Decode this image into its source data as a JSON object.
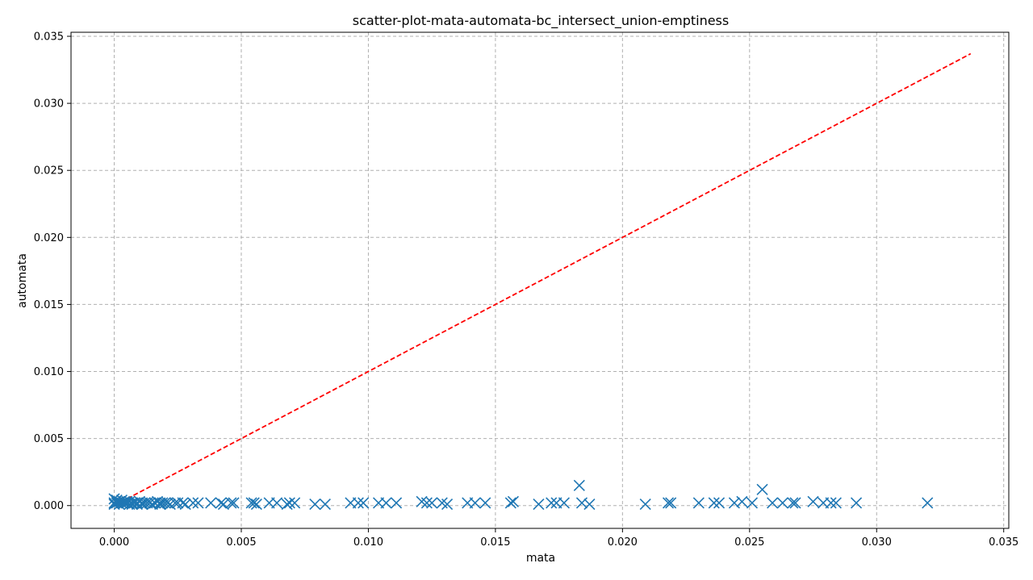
{
  "chart_data": {
    "type": "scatter",
    "title": "scatter-plot-mata-automata-bc_intersect_union-emptiness",
    "xlabel": "mata",
    "ylabel": "automata",
    "xlim": [
      -0.0017,
      0.0352
    ],
    "ylim": [
      -0.0017,
      0.0353
    ],
    "xticks": [
      "0.000",
      "0.005",
      "0.010",
      "0.015",
      "0.020",
      "0.025",
      "0.030",
      "0.035"
    ],
    "yticks": [
      "0.000",
      "0.005",
      "0.010",
      "0.015",
      "0.020",
      "0.025",
      "0.030",
      "0.035"
    ],
    "grid": true,
    "marker": "x",
    "colors": {
      "points": "#1f77b4",
      "reference_line": "#ff0000"
    },
    "reference_line": {
      "style": "dashed",
      "x": [
        0,
        0.0337
      ],
      "y": [
        0,
        0.0337
      ]
    },
    "points": {
      "x": [
        0.0,
        0.0,
        0.0,
        0.0001,
        0.0001,
        0.0002,
        0.0002,
        0.0003,
        0.0003,
        0.0004,
        0.0004,
        0.0005,
        0.0005,
        0.0006,
        0.0006,
        0.0007,
        0.0007,
        0.0008,
        0.0009,
        0.0009,
        0.001,
        0.0011,
        0.0011,
        0.0012,
        0.0013,
        0.0014,
        0.0015,
        0.0016,
        0.0017,
        0.0018,
        0.0018,
        0.0019,
        0.002,
        0.0021,
        0.0022,
        0.0024,
        0.0025,
        0.0027,
        0.0028,
        0.0031,
        0.0033,
        0.0038,
        0.0042,
        0.0043,
        0.0046,
        0.0047,
        0.0054,
        0.0055,
        0.0056,
        0.0061,
        0.0064,
        0.0068,
        0.0069,
        0.0071,
        0.0079,
        0.0083,
        0.0093,
        0.0096,
        0.0098,
        0.0104,
        0.0107,
        0.0111,
        0.0121,
        0.0123,
        0.0125,
        0.0129,
        0.0131,
        0.0139,
        0.0142,
        0.0146,
        0.0156,
        0.0157,
        0.0167,
        0.0172,
        0.0174,
        0.0177,
        0.0183,
        0.0184,
        0.0187,
        0.0209,
        0.0218,
        0.0219,
        0.023,
        0.0236,
        0.0238,
        0.0244,
        0.0247,
        0.0251,
        0.0255,
        0.0259,
        0.0263,
        0.0267,
        0.0268,
        0.0275,
        0.0279,
        0.0282,
        0.0284,
        0.0292,
        0.032
      ],
      "y": [
        0.0005,
        0.0002,
        0.0001,
        0.0004,
        0.0002,
        0.0003,
        0.0001,
        0.0002,
        0.0004,
        0.0002,
        0.0003,
        0.0002,
        0.0003,
        0.0001,
        0.0003,
        0.0002,
        0.0001,
        0.0002,
        0.0002,
        0.0001,
        0.0003,
        0.0002,
        0.0001,
        0.0002,
        0.0002,
        0.0002,
        0.0001,
        0.0002,
        0.0003,
        0.0002,
        0.0001,
        0.0002,
        0.0002,
        0.0002,
        0.0001,
        0.0002,
        0.0002,
        0.0002,
        0.0001,
        0.0002,
        0.0002,
        0.0002,
        0.0002,
        0.0001,
        0.0002,
        0.0002,
        0.0002,
        0.0002,
        0.0001,
        0.0002,
        0.0002,
        0.0001,
        0.0002,
        0.0002,
        0.0001,
        0.0001,
        0.0002,
        0.0002,
        0.0002,
        0.0002,
        0.0002,
        0.0002,
        0.0003,
        0.0002,
        0.0002,
        0.0002,
        0.0001,
        0.0002,
        0.0002,
        0.0002,
        0.0002,
        0.0003,
        0.0001,
        0.0002,
        0.0002,
        0.0002,
        0.0015,
        0.0002,
        0.0001,
        0.0001,
        0.0002,
        0.0002,
        0.0002,
        0.0002,
        0.0002,
        0.0002,
        0.0003,
        0.0002,
        0.0012,
        0.0002,
        0.0002,
        0.0002,
        0.0002,
        0.0003,
        0.0002,
        0.0002,
        0.0002,
        0.0002,
        0.0002
      ]
    }
  }
}
